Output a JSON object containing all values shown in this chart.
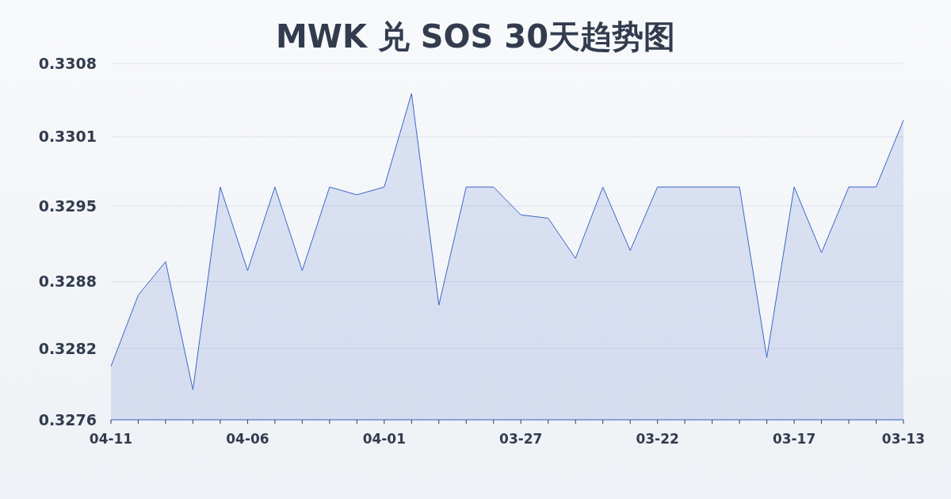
{
  "chart_data": {
    "type": "area",
    "title": "MWK 兑 SOS 30天趋势图",
    "categories": [
      "04-11",
      null,
      null,
      null,
      null,
      "04-06",
      null,
      null,
      null,
      null,
      "04-01",
      null,
      null,
      null,
      null,
      "03-27",
      null,
      null,
      null,
      null,
      "03-22",
      null,
      null,
      null,
      null,
      "03-17",
      null,
      null,
      null,
      "03-13"
    ],
    "series": [
      {
        "color": "#3a66c8",
        "values": [
          0.32808,
          0.32872,
          0.32902,
          0.32787,
          0.32969,
          0.32894,
          0.32969,
          0.32894,
          0.32969,
          0.32962,
          0.32969,
          0.33053,
          0.32863,
          0.32969,
          0.32969,
          0.32944,
          0.32941,
          0.32905,
          0.32969,
          0.32912,
          0.32969,
          0.32969,
          0.32969,
          0.32969,
          0.32816,
          0.32969,
          0.3291,
          0.32969,
          0.32969,
          0.33029
        ]
      }
    ],
    "ylim": [
      0.3276,
      0.3308
    ],
    "yticks": [
      {
        "value": 0.3276,
        "label": "0.3276"
      },
      {
        "value": 0.32824,
        "label": "0.3282"
      },
      {
        "value": 0.32884,
        "label": "0.3288"
      },
      {
        "value": 0.32952,
        "label": "0.3295"
      },
      {
        "value": 0.33014,
        "label": "0.3301"
      },
      {
        "value": 0.3308,
        "label": "0.3308"
      }
    ],
    "grid": "y"
  }
}
